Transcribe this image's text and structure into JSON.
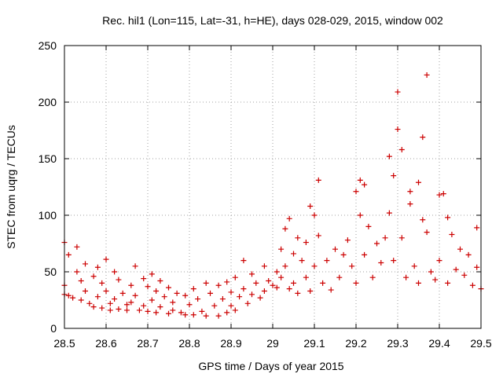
{
  "chart_data": {
    "type": "scatter",
    "title": "Rec. hil1 (Lon=115, Lat=-31, h=HE), days 028-029, 2015, window 002",
    "xlabel": "GPS time / Days of year 2015",
    "ylabel": "STEC from uqrg / TECUs",
    "xlim": [
      28.5,
      29.5
    ],
    "ylim": [
      0,
      250
    ],
    "xticks": [
      "28.5",
      "28.6",
      "28.7",
      "28.8",
      "28.9",
      "29",
      "29.1",
      "29.2",
      "29.3",
      "29.4",
      "29.5"
    ],
    "yticks": [
      "0",
      "50",
      "100",
      "150",
      "200",
      "250"
    ],
    "grid": true,
    "legend": "none",
    "marker": "+",
    "color": "#cc0000",
    "series": [
      {
        "values": [
          [
            28.5,
            76
          ],
          [
            28.5,
            38
          ],
          [
            28.5,
            30
          ],
          [
            28.51,
            65
          ],
          [
            28.51,
            29
          ],
          [
            28.52,
            27
          ],
          [
            28.53,
            72
          ],
          [
            28.53,
            50
          ],
          [
            28.54,
            42
          ],
          [
            28.54,
            25
          ],
          [
            28.55,
            57
          ],
          [
            28.55,
            33
          ],
          [
            28.56,
            22
          ],
          [
            28.57,
            46
          ],
          [
            28.57,
            19
          ],
          [
            28.58,
            54
          ],
          [
            28.58,
            28
          ],
          [
            28.59,
            40
          ],
          [
            28.59,
            18
          ],
          [
            28.6,
            61
          ],
          [
            28.6,
            33
          ],
          [
            28.61,
            22
          ],
          [
            28.61,
            16
          ],
          [
            28.62,
            50
          ],
          [
            28.62,
            26
          ],
          [
            28.63,
            43
          ],
          [
            28.63,
            17
          ],
          [
            28.64,
            31
          ],
          [
            28.65,
            21
          ],
          [
            28.65,
            16
          ],
          [
            28.66,
            38
          ],
          [
            28.66,
            23
          ],
          [
            28.67,
            55
          ],
          [
            28.67,
            29
          ],
          [
            28.68,
            16
          ],
          [
            28.69,
            44
          ],
          [
            28.69,
            20
          ],
          [
            28.7,
            37
          ],
          [
            28.7,
            15
          ],
          [
            28.71,
            48
          ],
          [
            28.71,
            25
          ],
          [
            28.72,
            33
          ],
          [
            28.72,
            14
          ],
          [
            28.73,
            42
          ],
          [
            28.73,
            19
          ],
          [
            28.74,
            28
          ],
          [
            28.75,
            36
          ],
          [
            28.75,
            13
          ],
          [
            28.76,
            23
          ],
          [
            28.76,
            16
          ],
          [
            28.77,
            31
          ],
          [
            28.78,
            14
          ],
          [
            28.79,
            29
          ],
          [
            28.79,
            12
          ],
          [
            28.8,
            21
          ],
          [
            28.81,
            35
          ],
          [
            28.81,
            12
          ],
          [
            28.82,
            26
          ],
          [
            28.83,
            15
          ],
          [
            28.84,
            40
          ],
          [
            28.84,
            11
          ],
          [
            28.85,
            31
          ],
          [
            28.86,
            20
          ],
          [
            28.87,
            38
          ],
          [
            28.87,
            11
          ],
          [
            28.88,
            26
          ],
          [
            28.89,
            41
          ],
          [
            28.89,
            14
          ],
          [
            28.9,
            32
          ],
          [
            28.9,
            20
          ],
          [
            28.91,
            45
          ],
          [
            28.91,
            16
          ],
          [
            28.92,
            28
          ],
          [
            28.93,
            60
          ],
          [
            28.93,
            35
          ],
          [
            28.94,
            22
          ],
          [
            28.95,
            48
          ],
          [
            28.95,
            30
          ],
          [
            28.96,
            40
          ],
          [
            28.97,
            27
          ],
          [
            28.98,
            55
          ],
          [
            28.98,
            33
          ],
          [
            28.99,
            42
          ],
          [
            29.0,
            38
          ],
          [
            29.01,
            50
          ],
          [
            29.01,
            36
          ],
          [
            29.02,
            70
          ],
          [
            29.02,
            45
          ],
          [
            29.03,
            88
          ],
          [
            29.03,
            55
          ],
          [
            29.04,
            97
          ],
          [
            29.04,
            35
          ],
          [
            29.05,
            66
          ],
          [
            29.05,
            40
          ],
          [
            29.06,
            80
          ],
          [
            29.06,
            31
          ],
          [
            29.07,
            60
          ],
          [
            29.08,
            76
          ],
          [
            29.08,
            45
          ],
          [
            29.09,
            108
          ],
          [
            29.09,
            33
          ],
          [
            29.1,
            100
          ],
          [
            29.1,
            55
          ],
          [
            29.11,
            131
          ],
          [
            29.11,
            82
          ],
          [
            29.12,
            40
          ],
          [
            29.13,
            60
          ],
          [
            29.14,
            34
          ],
          [
            29.15,
            70
          ],
          [
            29.16,
            45
          ],
          [
            29.17,
            65
          ],
          [
            29.18,
            78
          ],
          [
            29.19,
            55
          ],
          [
            29.2,
            121
          ],
          [
            29.2,
            40
          ],
          [
            29.21,
            131
          ],
          [
            29.21,
            100
          ],
          [
            29.22,
            127
          ],
          [
            29.22,
            65
          ],
          [
            29.23,
            90
          ],
          [
            29.24,
            45
          ],
          [
            29.25,
            75
          ],
          [
            29.26,
            58
          ],
          [
            29.27,
            80
          ],
          [
            29.28,
            152
          ],
          [
            29.28,
            102
          ],
          [
            29.29,
            135
          ],
          [
            29.29,
            60
          ],
          [
            29.3,
            209
          ],
          [
            29.3,
            176
          ],
          [
            29.31,
            158
          ],
          [
            29.31,
            80
          ],
          [
            29.32,
            45
          ],
          [
            29.33,
            121
          ],
          [
            29.33,
            110
          ],
          [
            29.34,
            55
          ],
          [
            29.35,
            129
          ],
          [
            29.35,
            40
          ],
          [
            29.36,
            169
          ],
          [
            29.36,
            96
          ],
          [
            29.37,
            224
          ],
          [
            29.37,
            85
          ],
          [
            29.38,
            50
          ],
          [
            29.39,
            43
          ],
          [
            29.4,
            118
          ],
          [
            29.4,
            60
          ],
          [
            29.41,
            119
          ],
          [
            29.42,
            98
          ],
          [
            29.42,
            40
          ],
          [
            29.43,
            83
          ],
          [
            29.44,
            52
          ],
          [
            29.45,
            70
          ],
          [
            29.46,
            47
          ],
          [
            29.47,
            65
          ],
          [
            29.48,
            38
          ],
          [
            29.49,
            89
          ],
          [
            29.49,
            54
          ],
          [
            29.5,
            35
          ]
        ]
      }
    ]
  }
}
